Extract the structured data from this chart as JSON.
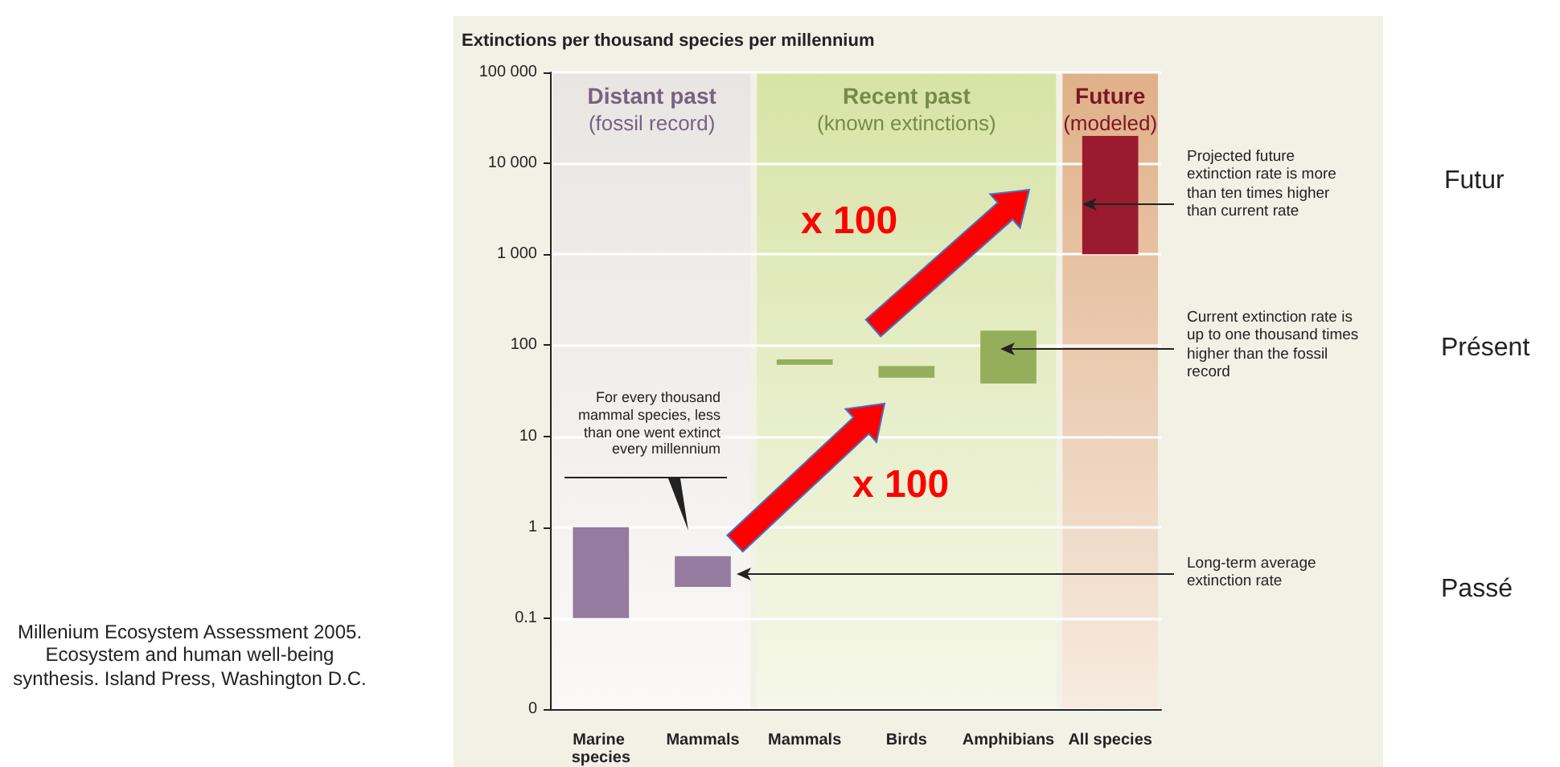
{
  "chart_data": {
    "type": "bar",
    "ylabel": "Extinctions per thousand species per millennium",
    "categories": [
      "Marine species",
      "Mammals",
      "Mammals",
      "Birds",
      "Amphibians",
      "All species"
    ],
    "base": [
      0.1,
      0.22,
      61,
      44,
      38,
      1000
    ],
    "values": [
      0.9,
      0.26,
      9,
      15,
      107,
      19000
    ],
    "colors": [
      "#957ba0",
      "#957ba0",
      "#95ae5b",
      "#95ae5b",
      "#95ae5b",
      "#9a1b2e"
    ],
    "log": "y",
    "ylim": [
      0.01,
      100000
    ],
    "yticks": [
      {
        "value": 0.01,
        "label": "0"
      },
      0.1,
      1,
      10,
      100,
      {
        "value": 1000,
        "label": "1 000"
      },
      {
        "value": 10000,
        "label": "10 000"
      },
      {
        "value": 100000,
        "label": "100 000"
      }
    ],
    "grid": "y",
    "bands": [
      {
        "axis": "x",
        "from": "Marine species",
        "to": "Mammals",
        "label": "Distant past\n(fossil record)",
        "color": "#e9e5e3"
      },
      {
        "axis": "x",
        "from": "Mammals",
        "to": "Amphibians",
        "label": "Recent past\n(known extinctions)",
        "color": "#d8e3a6"
      },
      {
        "axis": "x",
        "from": "All species",
        "to": "All species",
        "label": "Future\n(modeled)",
        "color": "#e0b088"
      }
    ],
    "annotations": [
      "For every thousand mammal species, less than one went extinct every millennium",
      "Projected future extinction rate is more than ten times higher than current rate",
      "Current extinction rate is up to one thousand times higher than the fossil record",
      "Long-term average extinction rate",
      "x 100",
      "x 100",
      "Futur",
      "Présent",
      "Passé",
      "Millenium Ecosystem Assessment 2005. Ecosystem and human well-being synthesis. Island Press, Washington D.C."
    ]
  }
}
